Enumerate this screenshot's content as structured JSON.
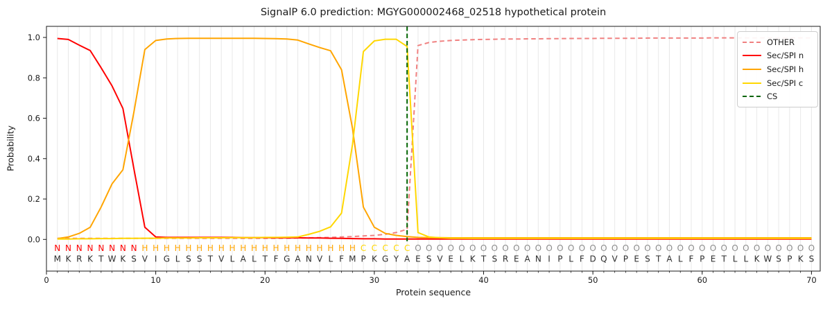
{
  "chart_data": {
    "type": "line",
    "title": "SignalP 6.0 prediction: MGYG000002468_02518 hypothetical protein",
    "xlabel": "Protein sequence",
    "ylabel": "Probability",
    "x_ticks": [
      0,
      10,
      20,
      30,
      40,
      50,
      60,
      70
    ],
    "y_ticks": [
      0.0,
      0.2,
      0.4,
      0.6,
      0.8,
      1.0
    ],
    "xlim": [
      0,
      70.8
    ],
    "ylim": [
      -0.157,
      1.055
    ],
    "grid": {
      "vertical": true,
      "horizontal": false,
      "color": "#e8e8e8"
    },
    "legend_position": "upper right",
    "x_start": 1,
    "series": [
      {
        "name": "OTHER",
        "color": "#f08080",
        "dashed": true,
        "values": [
          0.005,
          0.005,
          0.005,
          0.005,
          0.005,
          0.005,
          0.005,
          0.005,
          0.005,
          0.005,
          0.005,
          0.005,
          0.005,
          0.005,
          0.005,
          0.005,
          0.005,
          0.005,
          0.005,
          0.005,
          0.005,
          0.006,
          0.007,
          0.008,
          0.009,
          0.01,
          0.012,
          0.014,
          0.017,
          0.02,
          0.025,
          0.034,
          0.05,
          0.96,
          0.975,
          0.981,
          0.985,
          0.987,
          0.989,
          0.99,
          0.991,
          0.992,
          0.992,
          0.993,
          0.993,
          0.994,
          0.994,
          0.995,
          0.995,
          0.995,
          0.996,
          0.996,
          0.996,
          0.996,
          0.997,
          0.997,
          0.997,
          0.997,
          0.997,
          0.997,
          0.998,
          0.998,
          0.998,
          0.998,
          0.998,
          0.998,
          0.998,
          0.998,
          0.998,
          0.998
        ]
      },
      {
        "name": "Sec/SPI n",
        "color": "#ff0000",
        "dashed": false,
        "values": [
          0.995,
          0.99,
          0.962,
          0.935,
          0.85,
          0.76,
          0.648,
          0.35,
          0.06,
          0.012,
          0.01,
          0.01,
          0.01,
          0.01,
          0.01,
          0.01,
          0.01,
          0.009,
          0.009,
          0.009,
          0.008,
          0.008,
          0.008,
          0.007,
          0.007,
          0.006,
          0.005,
          0.004,
          0.003,
          0.003,
          0.002,
          0.002,
          0.002,
          0.002,
          0.002,
          0.002,
          0.002,
          0.002,
          0.002,
          0.002,
          0.002,
          0.002,
          0.002,
          0.002,
          0.002,
          0.002,
          0.002,
          0.002,
          0.002,
          0.002,
          0.002,
          0.002,
          0.002,
          0.002,
          0.002,
          0.002,
          0.002,
          0.002,
          0.002,
          0.002,
          0.002,
          0.002,
          0.002,
          0.002,
          0.002,
          0.002,
          0.002,
          0.002,
          0.002,
          0.002
        ]
      },
      {
        "name": "Sec/SPI h",
        "color": "#ffa500",
        "dashed": false,
        "values": [
          0.004,
          0.012,
          0.03,
          0.06,
          0.16,
          0.275,
          0.345,
          0.63,
          0.94,
          0.985,
          0.992,
          0.995,
          0.996,
          0.996,
          0.996,
          0.996,
          0.996,
          0.996,
          0.996,
          0.995,
          0.994,
          0.992,
          0.987,
          0.968,
          0.95,
          0.934,
          0.84,
          0.55,
          0.16,
          0.06,
          0.03,
          0.02,
          0.014,
          0.01,
          0.009,
          0.009,
          0.008,
          0.008,
          0.008,
          0.008,
          0.008,
          0.008,
          0.008,
          0.008,
          0.008,
          0.008,
          0.008,
          0.008,
          0.008,
          0.008,
          0.008,
          0.008,
          0.008,
          0.008,
          0.008,
          0.008,
          0.008,
          0.008,
          0.008,
          0.008,
          0.008,
          0.008,
          0.008,
          0.008,
          0.008,
          0.008,
          0.008,
          0.008,
          0.008,
          0.008
        ]
      },
      {
        "name": "Sec/SPI c",
        "color": "#ffd700",
        "dashed": false,
        "values": [
          0.002,
          0.002,
          0.003,
          0.003,
          0.004,
          0.004,
          0.005,
          0.005,
          0.006,
          0.006,
          0.007,
          0.007,
          0.007,
          0.008,
          0.008,
          0.008,
          0.009,
          0.009,
          0.009,
          0.01,
          0.01,
          0.011,
          0.012,
          0.025,
          0.04,
          0.062,
          0.13,
          0.47,
          0.93,
          0.983,
          0.991,
          0.991,
          0.955,
          0.034,
          0.012,
          0.008,
          0.006,
          0.006,
          0.005,
          0.005,
          0.005,
          0.005,
          0.005,
          0.005,
          0.005,
          0.005,
          0.005,
          0.005,
          0.005,
          0.005,
          0.005,
          0.005,
          0.005,
          0.005,
          0.005,
          0.005,
          0.005,
          0.005,
          0.005,
          0.005,
          0.005,
          0.005,
          0.005,
          0.005,
          0.005,
          0.005,
          0.005,
          0.005,
          0.005,
          0.005
        ]
      }
    ],
    "cs_line": {
      "name": "CS",
      "color": "#006400",
      "dashed": true,
      "x": 33
    },
    "sequence": "MKRKTWKSVIGLSSTVLALTFGANVLFMPKGYAESVELKTSREANIPLFDQVPESTALFPETLLKWSPKS",
    "region_labels": "NNNNNNNNHHHHHHHHHHHHHHHHHHHHCCCCCOOOOOOOOOOOOOOOOOOOOOOOOOOOOOOOOOOOOO",
    "region_colors": {
      "N": "#ff0000",
      "H": "#ffa500",
      "C": "#ffd700",
      "O": "#8c8c8c"
    },
    "sequence_color": "#2e2e2e",
    "axis_color": "#1a1a1a"
  }
}
